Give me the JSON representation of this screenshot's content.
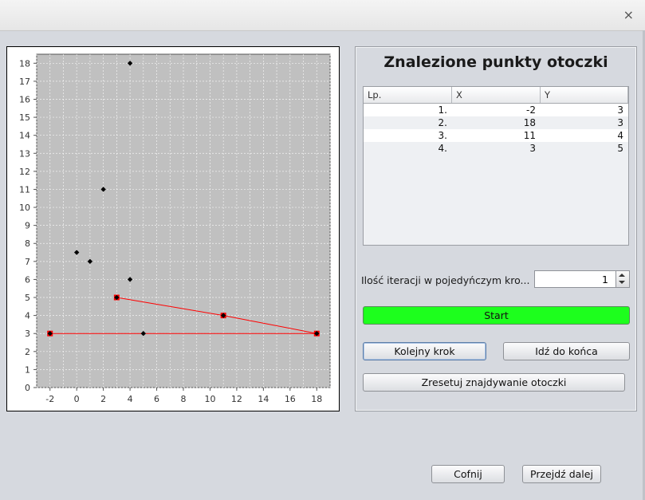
{
  "window": {
    "close_glyph": "×"
  },
  "panel": {
    "title": "Znalezione punkty otoczki"
  },
  "table": {
    "columns": [
      "Lp.",
      "X",
      "Y"
    ],
    "rows": [
      [
        "1.",
        "-2",
        "3"
      ],
      [
        "2.",
        "18",
        "3"
      ],
      [
        "3.",
        "11",
        "4"
      ],
      [
        "4.",
        "3",
        "5"
      ]
    ]
  },
  "iterations": {
    "label": "Ilość iteracji w pojedyńczym kro...",
    "value": "1"
  },
  "buttons": {
    "start": "Start",
    "next_step": "Kolejny krok",
    "go_to_end": "Idź do końca",
    "reset": "Zresetuj znajdywanie otoczki",
    "back": "Cofnij",
    "forward": "Przejdź dalej"
  },
  "chart_data": {
    "type": "scatter",
    "xlim": [
      -3,
      19
    ],
    "ylim": [
      0,
      18.5
    ],
    "x_ticks": [
      "-2",
      "0",
      "2",
      "4",
      "6",
      "8",
      "10",
      "12",
      "14",
      "16",
      "18"
    ],
    "y_ticks": [
      "0",
      "1",
      "2",
      "3",
      "4",
      "5",
      "6",
      "7",
      "8",
      "9",
      "10",
      "11",
      "12",
      "13",
      "14",
      "15",
      "16",
      "17",
      "18"
    ],
    "grid": true,
    "background": "#c0c0c0",
    "points": [
      {
        "x": -2,
        "y": 3
      },
      {
        "x": 0,
        "y": 7.5
      },
      {
        "x": 1,
        "y": 7
      },
      {
        "x": 2,
        "y": 11
      },
      {
        "x": 3,
        "y": 5
      },
      {
        "x": 4,
        "y": 18
      },
      {
        "x": 4,
        "y": 6
      },
      {
        "x": 5,
        "y": 3
      },
      {
        "x": 11,
        "y": 4
      },
      {
        "x": 18,
        "y": 3
      }
    ],
    "hull_points": [
      {
        "x": -2,
        "y": 3
      },
      {
        "x": 18,
        "y": 3
      },
      {
        "x": 11,
        "y": 4
      },
      {
        "x": 3,
        "y": 5
      }
    ],
    "hull_color": "#ff0000",
    "point_color": "#000000"
  }
}
